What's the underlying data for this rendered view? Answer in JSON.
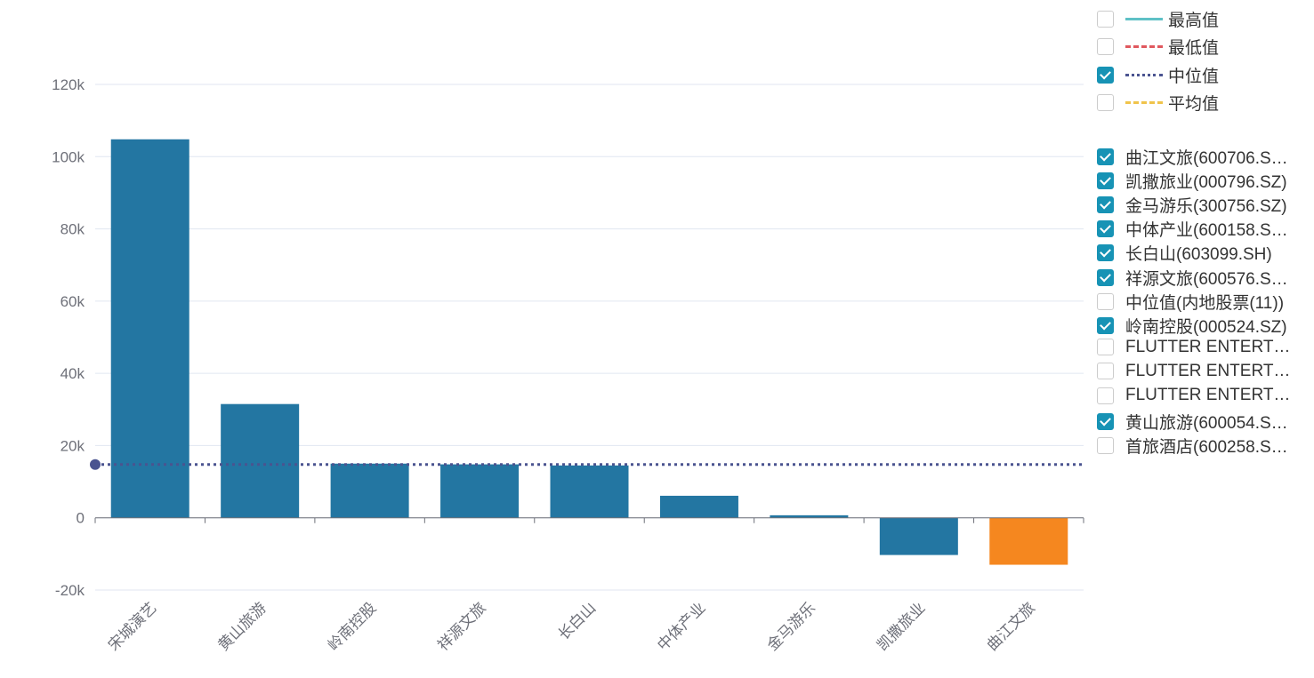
{
  "chart_data": {
    "type": "bar",
    "categories": [
      "宋城演艺",
      "黄山旅游",
      "岭南控股",
      "祥源文旅",
      "长白山",
      "中体产业",
      "金马游乐",
      "凯撒旅业",
      "曲江文旅"
    ],
    "values": [
      104800,
      31500,
      15000,
      14800,
      14500,
      6100,
      700,
      -10300,
      -13000
    ],
    "highlight_index": 8,
    "colors": {
      "bar": "#2376a2",
      "highlight": "#f5871f",
      "median": "#4a5490",
      "max": "#5fc1c6",
      "min": "#e0585e",
      "avg": "#f0c44c",
      "grid": "#e0e6f1",
      "axis": "#6e7079"
    },
    "ylim": [
      -20000,
      120000
    ],
    "yticks": [
      -20000,
      0,
      20000,
      40000,
      60000,
      80000,
      100000,
      120000
    ],
    "ytick_labels": [
      "-20k",
      "0",
      "20k",
      "40k",
      "60k",
      "80k",
      "100k",
      "120k"
    ],
    "grid": true,
    "median_line": 14750,
    "legend_placement": "right",
    "reference_legend": [
      {
        "label": "最高值",
        "checked": false,
        "style": "solid",
        "color": "#5fc1c6"
      },
      {
        "label": "最低值",
        "checked": false,
        "style": "dash-dot",
        "color": "#e0585e"
      },
      {
        "label": "中位值",
        "checked": true,
        "style": "dotted",
        "color": "#4a5490"
      },
      {
        "label": "平均值",
        "checked": false,
        "style": "dashed",
        "color": "#f0c44c"
      }
    ],
    "series_legend": [
      {
        "label": "曲江文旅(600706.S…",
        "checked": true
      },
      {
        "label": "凯撒旅业(000796.SZ)",
        "checked": true
      },
      {
        "label": "金马游乐(300756.SZ)",
        "checked": true
      },
      {
        "label": "中体产业(600158.S…",
        "checked": true
      },
      {
        "label": "长白山(603099.SH)",
        "checked": true
      },
      {
        "label": "祥源文旅(600576.S…",
        "checked": true
      },
      {
        "label": "中位值(内地股票(11))",
        "checked": false
      },
      {
        "label": "岭南控股(000524.SZ)",
        "checked": true
      },
      {
        "label": "FLUTTER ENTERT…",
        "checked": false
      },
      {
        "label": "FLUTTER ENTERT…",
        "checked": false
      },
      {
        "label": "FLUTTER ENTERT…",
        "checked": false
      },
      {
        "label": "黄山旅游(600054.S…",
        "checked": true
      },
      {
        "label": "首旅酒店(600258.S…",
        "checked": false
      }
    ]
  }
}
